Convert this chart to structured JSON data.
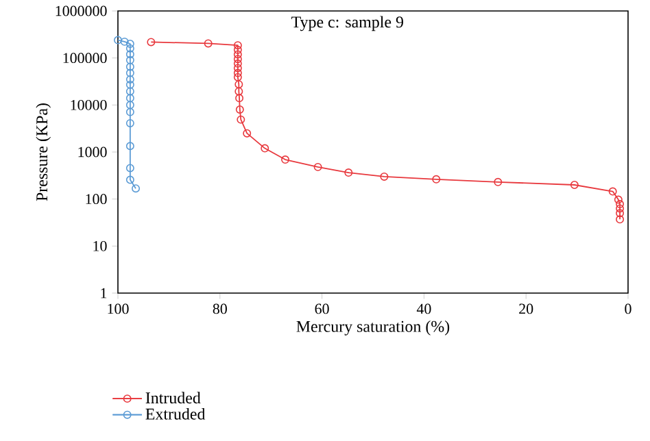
{
  "chart_data": {
    "type": "line",
    "title": "Type c: sample 9",
    "xlabel": "Mercury saturation (%)",
    "ylabel": "Pressure (KPa)",
    "log": "y",
    "xlim": [
      100,
      0
    ],
    "ylim": [
      1,
      1000000
    ],
    "xticks": [
      100,
      80,
      60,
      40,
      20,
      0
    ],
    "yticks": [
      1,
      10,
      100,
      1000,
      10000,
      100000,
      1000000
    ],
    "grid": false,
    "legend": "bottom",
    "marker": "circle",
    "line_style": "solid",
    "series": [
      {
        "name": "Intruded",
        "color": "#e8383d",
        "x": [
          93.5,
          82.3,
          76.5,
          76.5,
          76.5,
          76.5,
          76.5,
          76.5,
          76.5,
          76.5,
          76.3,
          76.3,
          76.2,
          76.1,
          75.9,
          74.7,
          71.2,
          67.2,
          60.8,
          54.8,
          47.8,
          37.6,
          25.5,
          10.5,
          3.0,
          1.9,
          1.6,
          1.6,
          1.6,
          1.6
        ],
        "values": [
          218000,
          204000,
          186000,
          149000,
          119000,
          95000,
          76000,
          61000,
          48000,
          39000,
          27500,
          19500,
          14000,
          8000,
          4900,
          2500,
          1200,
          690,
          480,
          365,
          300,
          263,
          230,
          200,
          145,
          97,
          78,
          63,
          50,
          37
        ]
      },
      {
        "name": "Extruded",
        "color": "#5b9bd5",
        "x": [
          100,
          98.7,
          97.6,
          97.6,
          97.6,
          97.6,
          97.6,
          97.6,
          97.6,
          97.6,
          97.6,
          97.6,
          97.6,
          97.6,
          97.6,
          97.6,
          97.6,
          97.6,
          96.5
        ],
        "values": [
          240000,
          222000,
          200000,
          160000,
          120000,
          90000,
          65000,
          48000,
          35000,
          27000,
          19500,
          14000,
          10000,
          7100,
          4100,
          1340,
          455,
          257,
          168
        ]
      }
    ]
  }
}
